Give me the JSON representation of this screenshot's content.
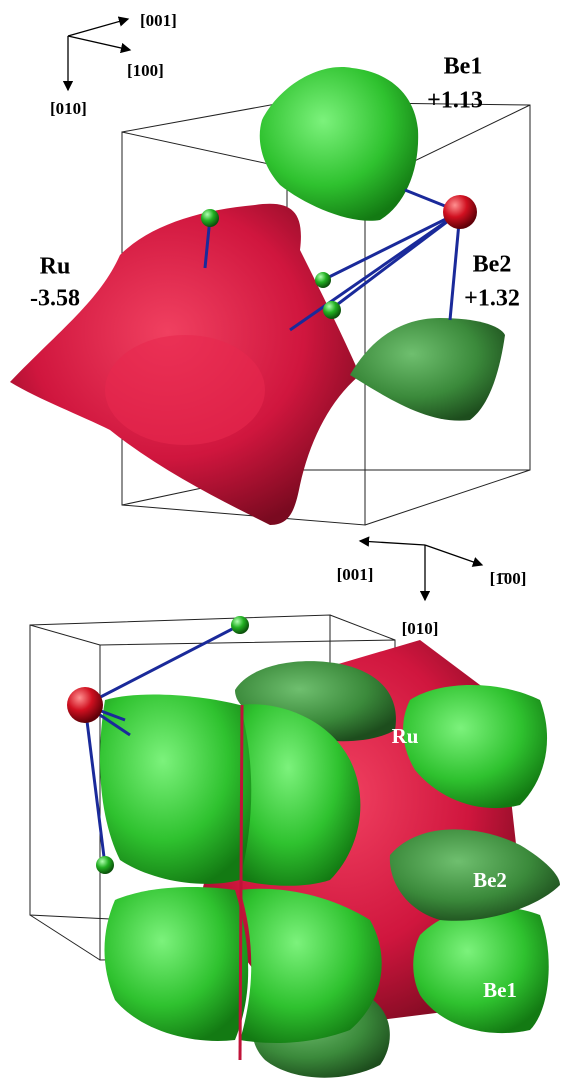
{
  "panels": [
    {
      "axes": {
        "horizontal": "[001]",
        "diagonal": "[100]",
        "vertical": "[010]"
      },
      "labels": [
        {
          "name": "Be1",
          "charge": "+1.13"
        },
        {
          "name": "Ru",
          "charge": "-3.58"
        },
        {
          "name": "Be2",
          "charge": "+1.32"
        }
      ]
    },
    {
      "axes": {
        "horizontal": "[001]",
        "diagonal": "[1̄00]",
        "vertical": "[010]"
      },
      "labels": [
        {
          "name": "Ru"
        },
        {
          "name": "Be2"
        },
        {
          "name": "Be1"
        }
      ]
    }
  ]
}
